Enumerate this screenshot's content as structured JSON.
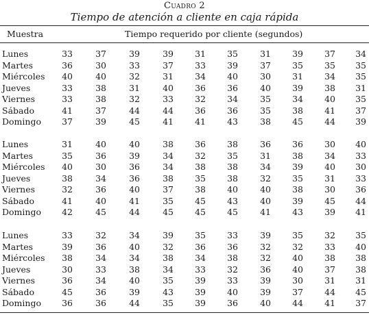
{
  "caption": {
    "label": "Cuadro 2",
    "title": "Tiempo de atención a cliente en caja rápida"
  },
  "header": {
    "sample": "Muestra",
    "time": "Tiempo requerido por cliente (segundos)"
  },
  "blocks": [
    {
      "rows": [
        {
          "day": "Lunes",
          "values": [
            33,
            37,
            39,
            39,
            31,
            35,
            31,
            39,
            37,
            34
          ]
        },
        {
          "day": "Martes",
          "values": [
            36,
            30,
            33,
            37,
            33,
            39,
            37,
            35,
            35,
            35
          ]
        },
        {
          "day": "Miércoles",
          "values": [
            40,
            40,
            32,
            31,
            34,
            40,
            30,
            31,
            34,
            35
          ]
        },
        {
          "day": "Jueves",
          "values": [
            33,
            38,
            31,
            40,
            36,
            36,
            40,
            39,
            38,
            31
          ]
        },
        {
          "day": "Viernes",
          "values": [
            33,
            38,
            32,
            33,
            32,
            34,
            35,
            34,
            40,
            35
          ]
        },
        {
          "day": "Sábado",
          "values": [
            41,
            37,
            44,
            44,
            36,
            36,
            35,
            38,
            41,
            37
          ]
        },
        {
          "day": "Domingo",
          "values": [
            37,
            39,
            45,
            41,
            41,
            43,
            38,
            45,
            44,
            39
          ]
        }
      ]
    },
    {
      "rows": [
        {
          "day": "Lunes",
          "values": [
            31,
            40,
            40,
            38,
            36,
            38,
            36,
            36,
            30,
            40
          ]
        },
        {
          "day": "Martes",
          "values": [
            35,
            36,
            39,
            34,
            32,
            35,
            31,
            38,
            34,
            33
          ]
        },
        {
          "day": "Miércoles",
          "values": [
            40,
            30,
            36,
            34,
            38,
            38,
            34,
            39,
            40,
            30
          ]
        },
        {
          "day": "Jueves",
          "values": [
            38,
            34,
            36,
            38,
            35,
            38,
            32,
            35,
            31,
            33
          ]
        },
        {
          "day": "Viernes",
          "values": [
            32,
            36,
            40,
            37,
            38,
            40,
            40,
            38,
            30,
            36
          ]
        },
        {
          "day": "Sábado",
          "values": [
            41,
            40,
            41,
            35,
            45,
            43,
            40,
            39,
            45,
            44
          ]
        },
        {
          "day": "Domingo",
          "values": [
            42,
            45,
            44,
            45,
            45,
            45,
            41,
            43,
            39,
            41
          ]
        }
      ]
    },
    {
      "rows": [
        {
          "day": "Lunes",
          "values": [
            33,
            32,
            34,
            39,
            35,
            33,
            39,
            35,
            32,
            35
          ]
        },
        {
          "day": "Martes",
          "values": [
            39,
            36,
            40,
            32,
            36,
            36,
            32,
            32,
            33,
            40
          ]
        },
        {
          "day": "Miércoles",
          "values": [
            38,
            34,
            34,
            38,
            34,
            38,
            32,
            40,
            38,
            38
          ]
        },
        {
          "day": "Jueves",
          "values": [
            30,
            33,
            38,
            34,
            33,
            32,
            36,
            40,
            37,
            38
          ]
        },
        {
          "day": "Viernes",
          "values": [
            36,
            34,
            40,
            35,
            39,
            33,
            39,
            30,
            31,
            31
          ]
        },
        {
          "day": "Sábado",
          "values": [
            45,
            36,
            39,
            43,
            39,
            40,
            39,
            37,
            44,
            45
          ]
        },
        {
          "day": "Domingo",
          "values": [
            36,
            36,
            44,
            35,
            39,
            36,
            40,
            44,
            41,
            37
          ]
        }
      ]
    }
  ]
}
